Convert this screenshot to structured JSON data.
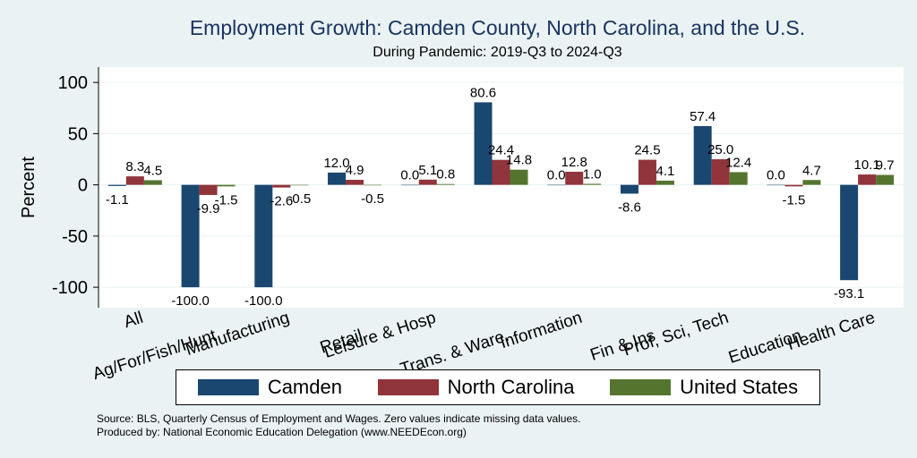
{
  "chart_data": {
    "type": "bar",
    "title": "Employment Growth: Camden County, North Carolina, and the U.S.",
    "subtitle": "During Pandemic: 2019-Q3 to 2024-Q3",
    "ylabel": "Percent",
    "xlabel": "",
    "ylim": [
      -120,
      115
    ],
    "yticks": [
      -100,
      -50,
      0,
      50,
      100
    ],
    "grid": true,
    "categories": [
      "All",
      "Ag/For/Fish/Hunt",
      "Manufacturing",
      "Retail",
      "Leisure & Hosp",
      "Trans. & Ware.",
      "Information",
      "Fin & Ins",
      "Prof, Sci, Tech",
      "Education",
      "Health Care"
    ],
    "series": [
      {
        "name": "Camden",
        "color": "#1a476f",
        "values": [
          -1.1,
          -100.0,
          -100.0,
          12.0,
          0.0,
          80.6,
          0.0,
          -8.6,
          57.4,
          0.0,
          -93.1
        ]
      },
      {
        "name": "North Carolina",
        "color": "#90353b",
        "values": [
          8.3,
          -9.9,
          -2.6,
          4.9,
          5.1,
          24.4,
          12.8,
          24.5,
          25.0,
          -1.5,
          10.1
        ]
      },
      {
        "name": "United States",
        "color": "#55752f",
        "values": [
          4.5,
          -1.5,
          -0.5,
          -0.5,
          0.8,
          14.8,
          1.0,
          4.1,
          12.4,
          4.7,
          9.7
        ]
      }
    ],
    "legend_position": "bottom"
  },
  "notes": {
    "source": "Source: BLS, Quarterly Census of Employment and Wages. Zero values indicate missing data values.",
    "producer": "Produced by: National Economic Education Delegation (www.NEEDEcon.org)"
  }
}
